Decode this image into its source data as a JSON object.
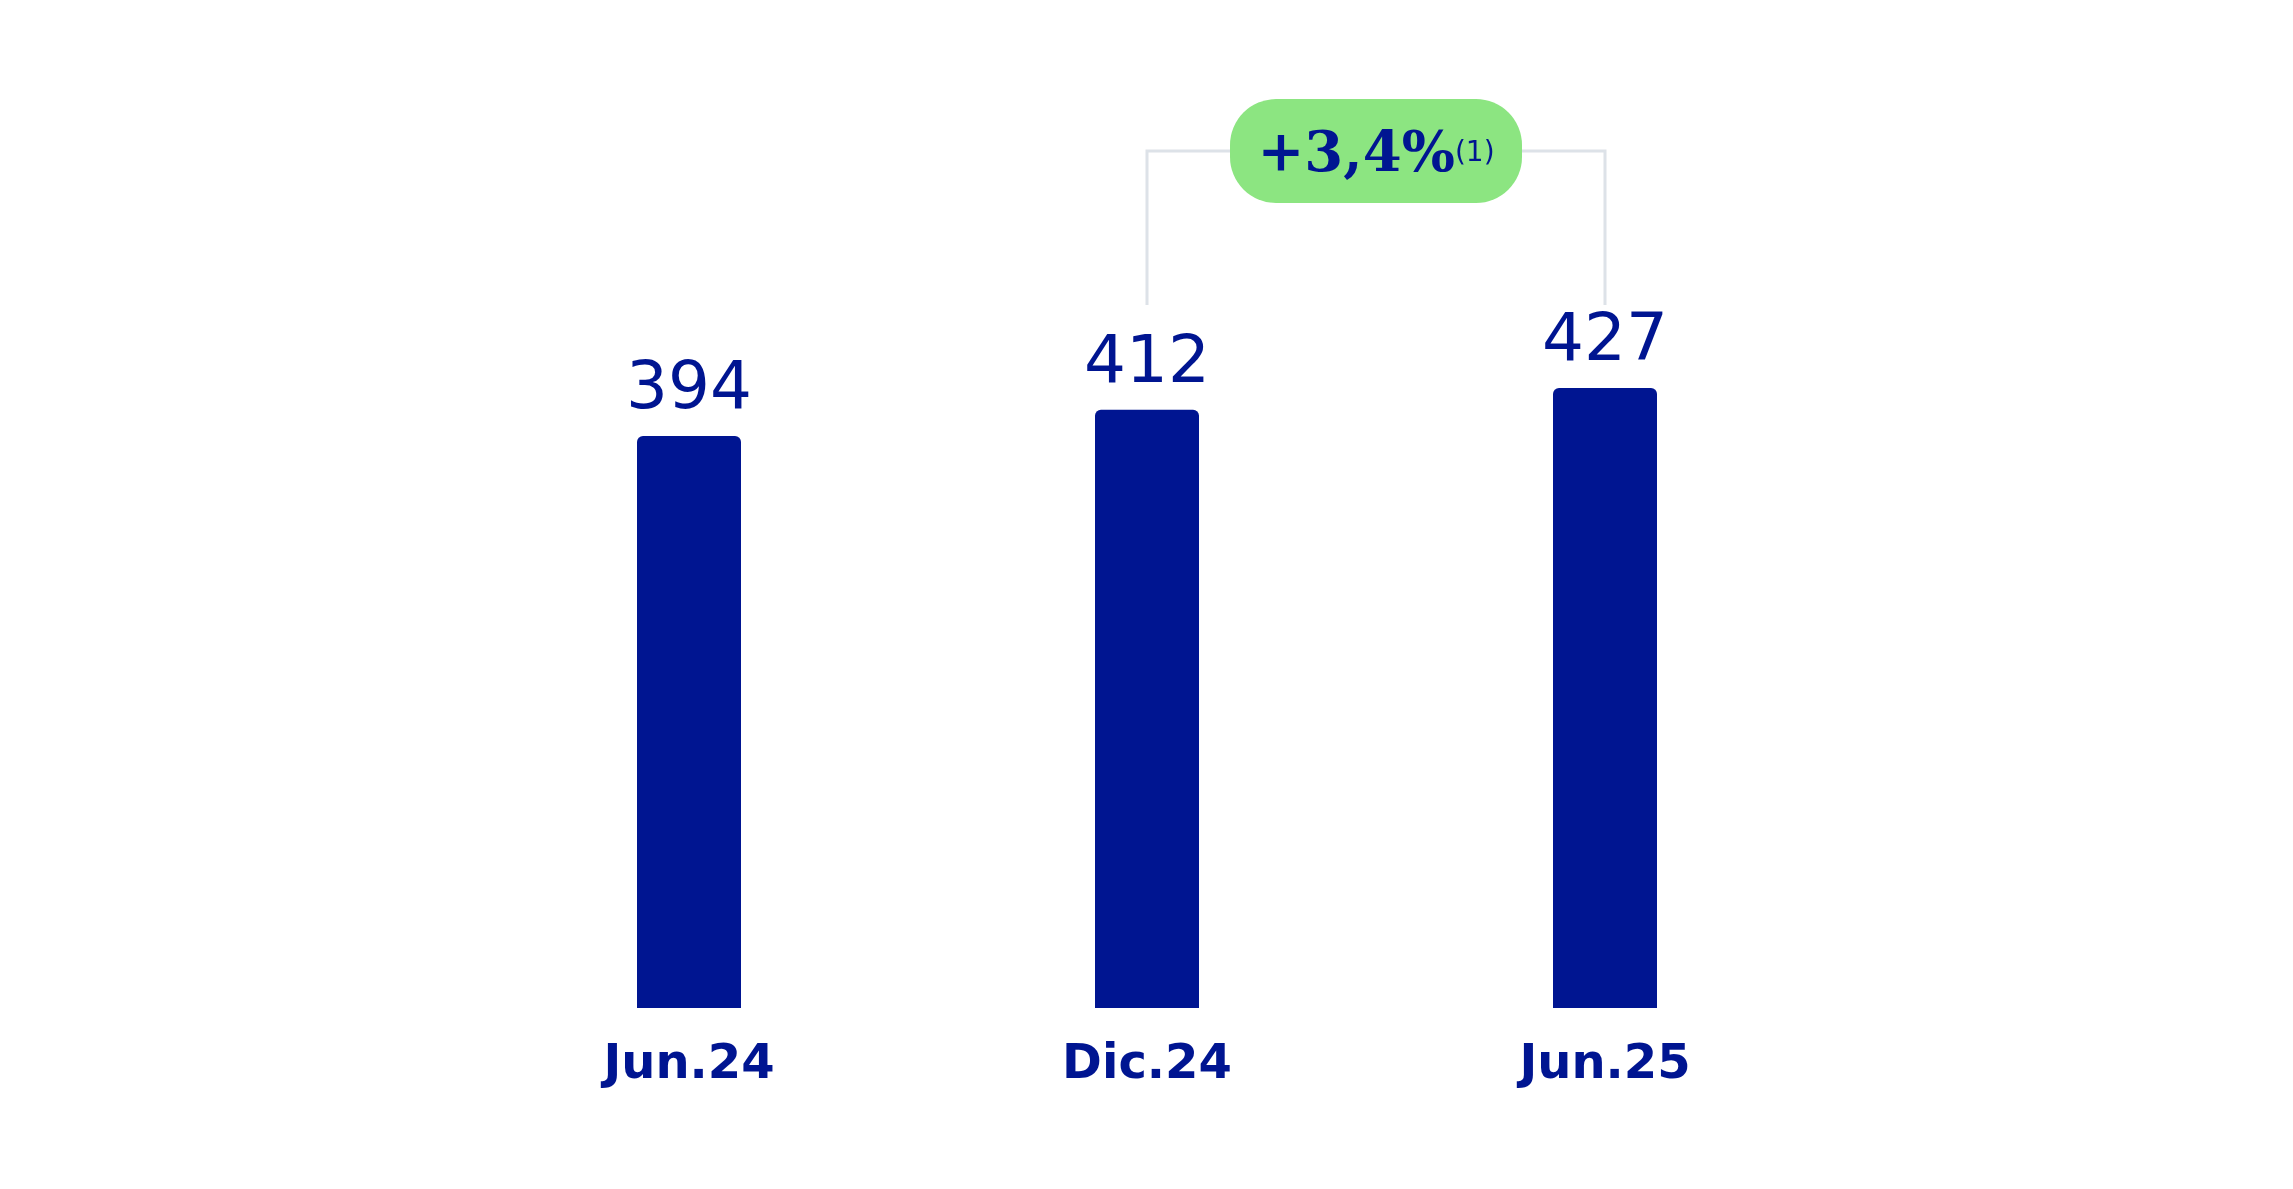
{
  "chart_data": {
    "type": "bar",
    "categories": [
      "Jun.24",
      "Dic.24",
      "Jun.25"
    ],
    "values": [
      394,
      412,
      427
    ],
    "color": "#001591",
    "tick_labels": "x",
    "data_labels": true,
    "annotations": [
      "+3,4%$^{(1)}$"
    ]
  }
}
